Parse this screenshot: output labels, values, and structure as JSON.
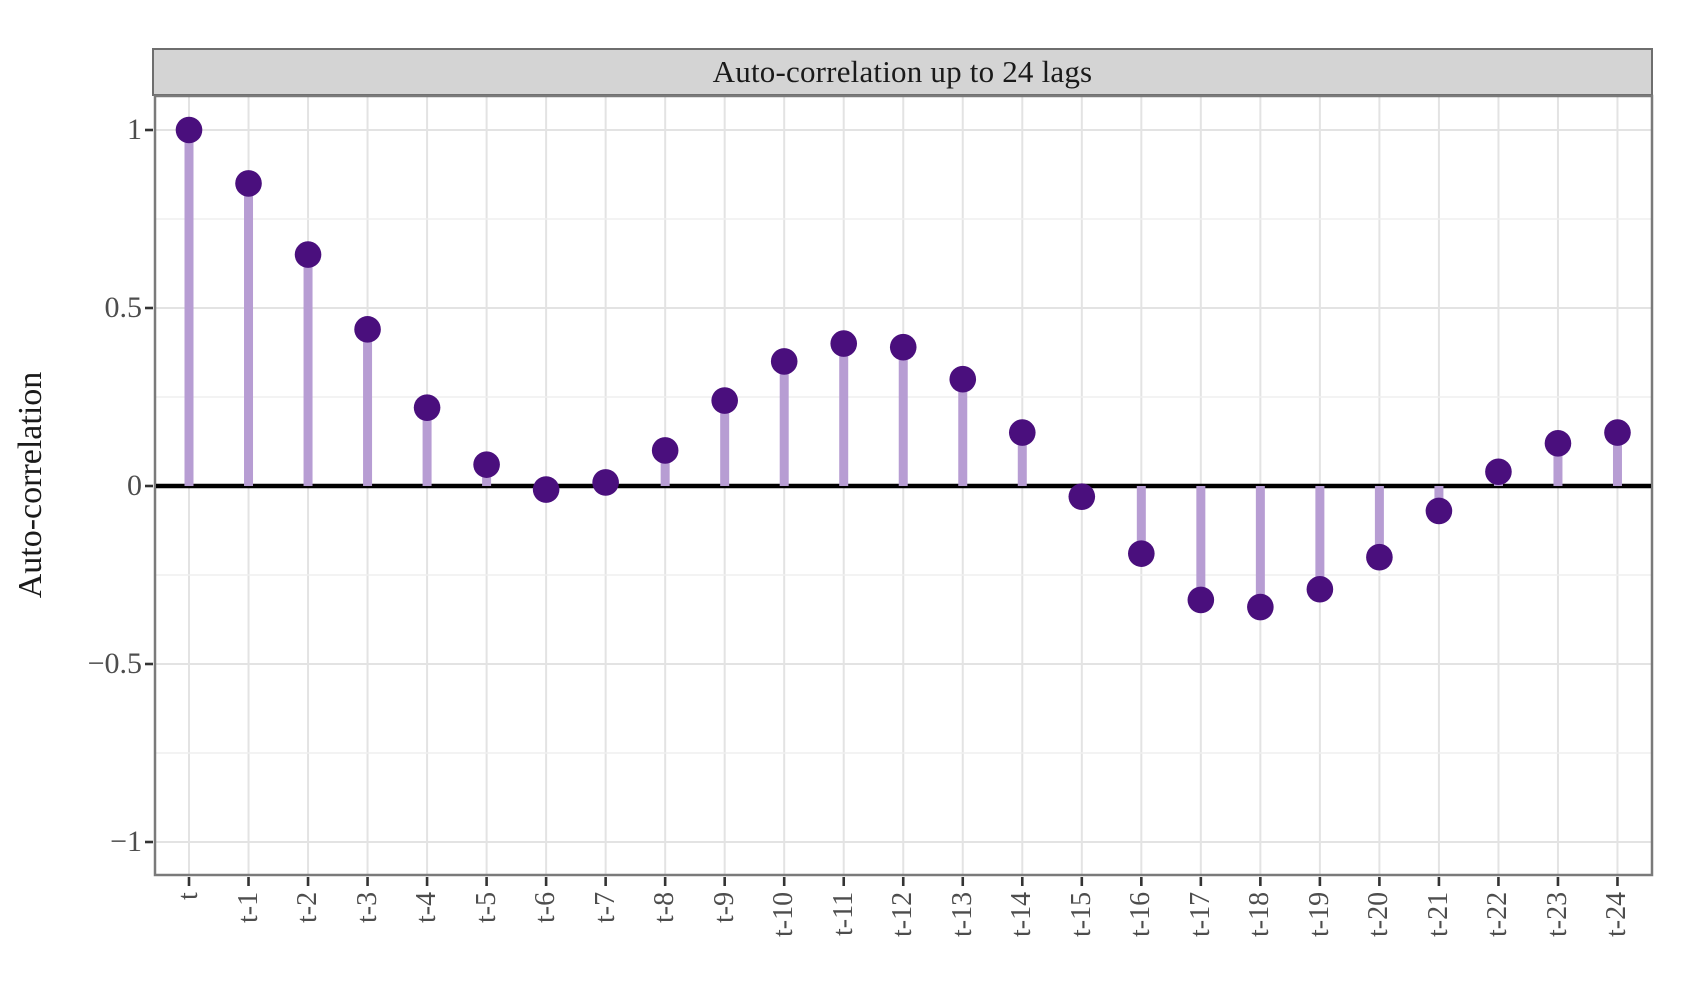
{
  "chart_data": {
    "type": "scatter",
    "variant": "lollipop-stem autocorrelation plot (points on stems from zero line)",
    "title": "Auto-correlation up to 24 lags",
    "ylabel": "Auto-correlation",
    "xlabel": "",
    "categories": [
      "t",
      "t-1",
      "t-2",
      "t-3",
      "t-4",
      "t-5",
      "t-6",
      "t-7",
      "t-8",
      "t-9",
      "t-10",
      "t-11",
      "t-12",
      "t-13",
      "t-14",
      "t-15",
      "t-16",
      "t-17",
      "t-18",
      "t-19",
      "t-20",
      "t-21",
      "t-22",
      "t-23",
      "t-24"
    ],
    "values": [
      1.0,
      0.85,
      0.65,
      0.44,
      0.22,
      0.06,
      -0.01,
      0.01,
      0.1,
      0.24,
      0.35,
      0.4,
      0.39,
      0.3,
      0.15,
      -0.03,
      -0.19,
      -0.32,
      -0.34,
      -0.29,
      -0.2,
      -0.07,
      0.04,
      0.12,
      0.15
    ],
    "ylim": [
      -1.1,
      1.1
    ],
    "y_major_ticks": [
      1,
      0.5,
      0,
      -0.5,
      -1
    ],
    "y_tick_labels": [
      "1",
      "0.5",
      "0",
      "−0.5",
      "−1"
    ],
    "y_minor_grid_step": 0.25,
    "x_tick_rotation_deg": 90,
    "grid": "light gray; horizontal lines every 0.25, vertical line at each lag",
    "zero_line": true,
    "legend": "none"
  },
  "colors": {
    "point": "#4a0f7d",
    "stem": "#b79dd3",
    "strip_fill": "#d4d4d4",
    "strip_border": "#6e6e6e",
    "panel_border": "#7a7a7a",
    "grid_major": "#e3e3e3",
    "grid_minor": "#efefef",
    "zero_line": "#000000",
    "axis_tick": "#333333",
    "tick_label_text": "#4d4d4d",
    "title_text": "#1a1a1a",
    "background": "#ffffff"
  }
}
